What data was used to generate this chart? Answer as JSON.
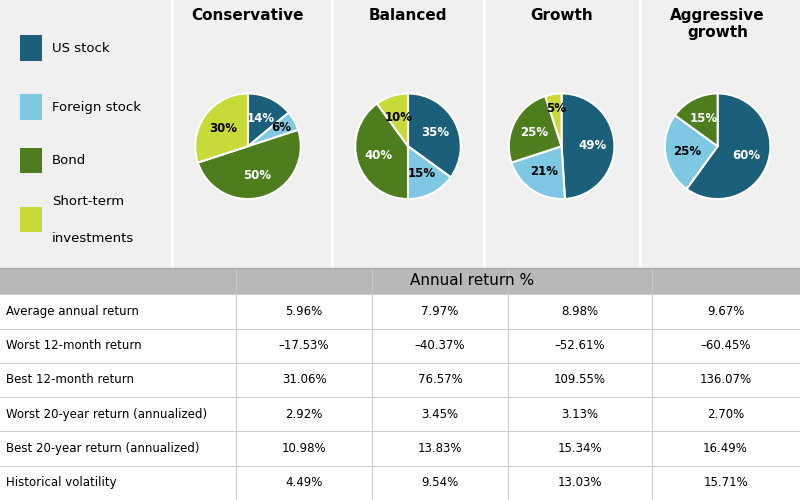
{
  "legend_items": [
    "US stock",
    "Foreign stock",
    "Bond",
    "Short-term\ninvestments"
  ],
  "legend_colors": [
    "#1b5f7a",
    "#7ec8e3",
    "#4e7d1e",
    "#c8d93a"
  ],
  "pie_titles": [
    "Conservative",
    "Balanced",
    "Growth",
    "Aggressive\ngrowth"
  ],
  "pie_data": [
    [
      14,
      6,
      50,
      30
    ],
    [
      35,
      15,
      40,
      10
    ],
    [
      49,
      21,
      25,
      5
    ],
    [
      60,
      25,
      15,
      0
    ]
  ],
  "pie_labels": [
    [
      "14%",
      "6%",
      "50%",
      "30%"
    ],
    [
      "35%",
      "15%",
      "40%",
      "10%"
    ],
    [
      "49%",
      "21%",
      "25%",
      "5%"
    ],
    [
      "60%",
      "25%",
      "15%",
      ""
    ]
  ],
  "pie_colors": [
    "#1b5f7a",
    "#7ec8e3",
    "#4e7d1e",
    "#c8d93a"
  ],
  "section_header": "Annual return %",
  "row_labels": [
    "Average annual return",
    "Worst 12-month return",
    "Best 12-month return",
    "Worst 20-year return (annualized)",
    "Best 20-year return (annualized)",
    "Historical volatility"
  ],
  "table_data": [
    [
      "5.96%",
      "7.97%",
      "8.98%",
      "9.67%"
    ],
    [
      "–17.53%",
      "–40.37%",
      "–52.61%",
      "–60.45%"
    ],
    [
      "31.06%",
      "76.57%",
      "109.55%",
      "136.07%"
    ],
    [
      "2.92%",
      "3.45%",
      "3.13%",
      "2.70%"
    ],
    [
      "10.98%",
      "13.83%",
      "15.34%",
      "16.49%"
    ],
    [
      "4.49%",
      "9.54%",
      "13.03%",
      "15.71%"
    ]
  ],
  "bg_color": "#f0f0f0",
  "header_bg": "#b8b8b8",
  "table_bg": "#ffffff",
  "row_alt_color": "#e8e8e8",
  "divider_color": "#cccccc",
  "top_divider_color": "#ffffff",
  "label_fontsize": 8.5,
  "pie_label_fontsize": 8.5,
  "title_fontsize": 11
}
